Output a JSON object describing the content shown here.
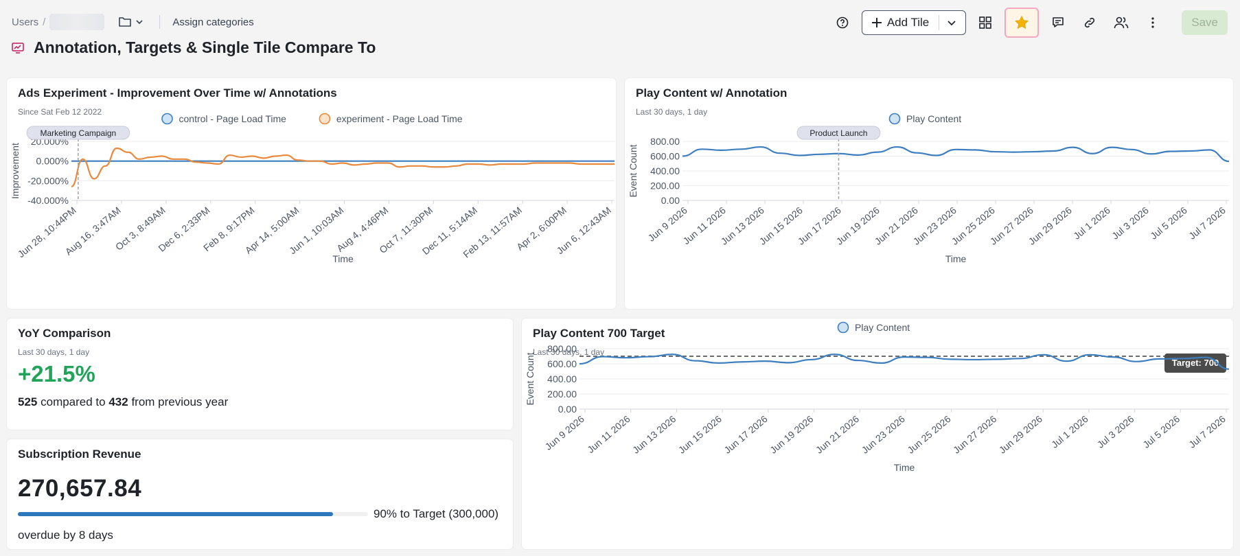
{
  "breadcrumb": {
    "root": "Users",
    "separator": "/"
  },
  "header": {
    "assign_label": "Assign categories",
    "title": "Annotation, Targets & Single Tile Compare To"
  },
  "toolbar": {
    "add_tile_label": "Add Tile",
    "save_label": "Save",
    "favorite_color": "#f5b301"
  },
  "icons": [
    "help-icon",
    "plus-icon",
    "chevron-down-icon",
    "grid-icon",
    "star-icon",
    "comment-icon",
    "link-icon",
    "users-icon",
    "more-vertical-icon",
    "folder-icon",
    "chart-icon"
  ],
  "tiles": {
    "ads": {
      "title": "Ads Experiment - Improvement Over Time w/ Annotations",
      "subtitle": "Since Sat Feb 12 2022"
    },
    "play": {
      "title": "Play Content w/ Annotation",
      "subtitle": "Last 30 days, 1 day"
    },
    "yoy": {
      "title": "YoY Comparison",
      "subtitle": "Last 30 days, 1 day",
      "percent": "+21.5%",
      "current": "525",
      "compared_text": "compared to",
      "previous": "432",
      "suffix_text": "from previous year"
    },
    "revenue": {
      "title": "Subscription Revenue",
      "value": "270,657.84",
      "progress": 0.9,
      "target_text": "90% to Target (300,000)",
      "overdue_text": "overdue by 8 days"
    },
    "target": {
      "title": "Play Content 700 Target",
      "subtitle": "Last 30 days, 1 day"
    }
  },
  "chart_data": [
    {
      "id": "ads",
      "type": "line",
      "xlabel": "Time",
      "ylabel": "Improvement",
      "x_ticks": [
        "Jun 28, 10:44PM",
        "Aug 16, 3:47AM",
        "Oct 3, 8:49AM",
        "Dec 6, 2:33PM",
        "Feb 8, 9:17PM",
        "Apr 14, 5:00AM",
        "Jun 1, 10:03AM",
        "Aug 4, 4:46PM",
        "Oct 7, 11:30PM",
        "Dec 11, 5:14AM",
        "Feb 13, 11:57AM",
        "Apr 2, 6:00PM",
        "Jun 6, 12:43AM"
      ],
      "y_ticks": [
        "20.000%",
        "0.000%",
        "-20.000%",
        "-40.000%"
      ],
      "ylim": [
        -40,
        20
      ],
      "legend": [
        "control - Page Load Time",
        "experiment - Page Load Time"
      ],
      "series": [
        {
          "name": "control - Page Load Time",
          "color": "#3d7ebf",
          "values": [
            0,
            0,
            0,
            0,
            0,
            0,
            0,
            0,
            0,
            0,
            0,
            0,
            0,
            0,
            0,
            0,
            0,
            0,
            0,
            0,
            0,
            0,
            0,
            0,
            0,
            0,
            0,
            0,
            0,
            0,
            0,
            0,
            0,
            0,
            0,
            0,
            0,
            0,
            0,
            0,
            0,
            0,
            0,
            0,
            0,
            0,
            0,
            0,
            0
          ]
        },
        {
          "name": "experiment - Page Load Time",
          "color": "#e8893b",
          "values": [
            -26,
            2,
            -18,
            -5,
            13,
            9,
            2,
            4,
            5,
            2,
            2,
            -1,
            -2,
            -3,
            6,
            4,
            5,
            3,
            5,
            6,
            1,
            0,
            0,
            -3,
            -2,
            -4,
            -3,
            -2,
            -2,
            -6,
            -5,
            -5,
            -6,
            -6,
            -5,
            -3,
            -3,
            -4,
            -3,
            -3,
            -3,
            -2,
            -2,
            -2,
            -2,
            -3,
            -3,
            -3,
            -3
          ]
        }
      ],
      "annotations": [
        {
          "label": "Marketing Campaign",
          "x_index": 0.6
        }
      ]
    },
    {
      "id": "play",
      "type": "line",
      "xlabel": "Time",
      "ylabel": "Event Count",
      "x_ticks": [
        "Jun 9 2026",
        "Jun 11 2026",
        "Jun 13 2026",
        "Jun 15 2026",
        "Jun 17 2026",
        "Jun 19 2026",
        "Jun 21 2026",
        "Jun 23 2026",
        "Jun 25 2026",
        "Jun 27 2026",
        "Jun 29 2026",
        "Jul 1 2026",
        "Jul 3 2026",
        "Jul 5 2026",
        "Jul 7 2026"
      ],
      "y_ticks": [
        "800.00",
        "600.00",
        "400.00",
        "200.00",
        "0.00"
      ],
      "ylim": [
        0,
        800
      ],
      "legend": [
        "Play Content"
      ],
      "series": [
        {
          "name": "Play Content",
          "color": "#3d7ebf",
          "values": [
            600,
            695,
            680,
            695,
            725,
            640,
            610,
            625,
            635,
            615,
            655,
            725,
            645,
            610,
            690,
            685,
            660,
            655,
            660,
            670,
            720,
            635,
            720,
            690,
            630,
            665,
            670,
            685,
            530
          ]
        }
      ],
      "annotations": [
        {
          "label": "Product Launch",
          "x_index": 8
        }
      ]
    },
    {
      "id": "target",
      "type": "line",
      "xlabel": "Time",
      "ylabel": "Event Count",
      "x_ticks": [
        "Jun 9 2026",
        "Jun 11 2026",
        "Jun 13 2026",
        "Jun 15 2026",
        "Jun 17 2026",
        "Jun 19 2026",
        "Jun 21 2026",
        "Jun 23 2026",
        "Jun 25 2026",
        "Jun 27 2026",
        "Jun 29 2026",
        "Jul 1 2026",
        "Jul 3 2026",
        "Jul 5 2026",
        "Jul 7 2026"
      ],
      "y_ticks": [
        "800.00",
        "600.00",
        "400.00",
        "200.00",
        "0.00"
      ],
      "ylim": [
        0,
        800
      ],
      "legend": [
        "Play Content"
      ],
      "target": {
        "value": 700,
        "label": "Target: 700"
      },
      "series": [
        {
          "name": "Play Content",
          "color": "#3d7ebf",
          "values": [
            600,
            695,
            680,
            695,
            725,
            640,
            610,
            625,
            635,
            615,
            655,
            725,
            645,
            610,
            690,
            685,
            660,
            655,
            660,
            670,
            720,
            635,
            720,
            690,
            630,
            665,
            670,
            685,
            530
          ]
        }
      ]
    }
  ]
}
